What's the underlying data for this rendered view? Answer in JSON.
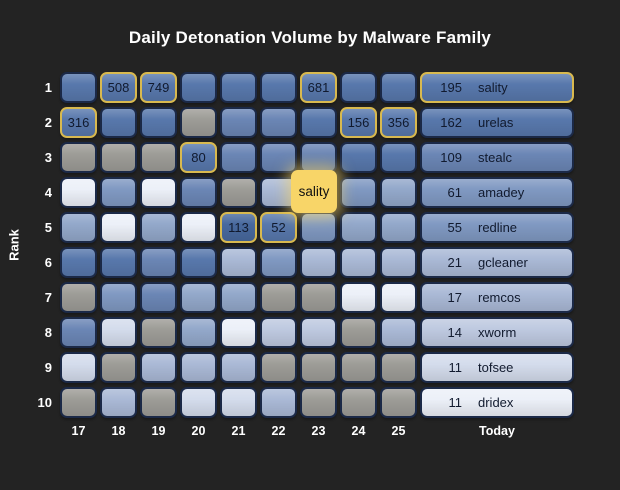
{
  "title": "Daily Detonation Volume by Malware Family",
  "y_axis_label": "Rank",
  "x_ticks": [
    "17",
    "18",
    "19",
    "20",
    "21",
    "22",
    "23",
    "24",
    "25",
    "Today"
  ],
  "tooltip": {
    "text": "sality"
  },
  "colors": {
    "background": "#232323",
    "cell_border": "#1b2947",
    "highlight_outline": "#d8b94f",
    "tooltip_fill": "#f8d568",
    "text_light": "#ffffff",
    "text_dark": "#111a2e",
    "palette": {
      "b1": "#48699e",
      "b2": "#5878ac",
      "b3": "#6b86b5",
      "b4": "#8099c2",
      "b5": "#93a8ca",
      "b6": "#aab9d6",
      "b7": "#bec9e0",
      "b8": "#d4dcec",
      "b9": "#ecf0f8",
      "gray": "#9d9c97"
    }
  },
  "rows": [
    {
      "rank": "1",
      "cells": [
        {
          "c": "b2"
        },
        {
          "c": "b2",
          "label": "508",
          "hl": true
        },
        {
          "c": "b2",
          "label": "749",
          "hl": true
        },
        {
          "c": "b2"
        },
        {
          "c": "b2"
        },
        {
          "c": "b2"
        },
        {
          "c": "b2",
          "label": "681",
          "hl": true
        },
        {
          "c": "b2"
        },
        {
          "c": "b2"
        }
      ],
      "today": {
        "value": "195",
        "family": "sality",
        "c": "b2",
        "hl": true
      }
    },
    {
      "rank": "2",
      "cells": [
        {
          "c": "b2",
          "label": "316",
          "hl": true
        },
        {
          "c": "b2"
        },
        {
          "c": "b2"
        },
        {
          "c": "gray"
        },
        {
          "c": "b3"
        },
        {
          "c": "b3"
        },
        {
          "c": "b2"
        },
        {
          "c": "b2",
          "label": "156",
          "hl": true
        },
        {
          "c": "b2",
          "label": "356",
          "hl": true
        }
      ],
      "today": {
        "value": "162",
        "family": "urelas",
        "c": "b2"
      }
    },
    {
      "rank": "3",
      "cells": [
        {
          "c": "gray"
        },
        {
          "c": "gray"
        },
        {
          "c": "gray"
        },
        {
          "c": "b2",
          "label": "80",
          "hl": true
        },
        {
          "c": "b3"
        },
        {
          "c": "b3"
        },
        {
          "c": "b3"
        },
        {
          "c": "b2"
        },
        {
          "c": "b2"
        }
      ],
      "today": {
        "value": "109",
        "family": "stealc",
        "c": "b3"
      }
    },
    {
      "rank": "4",
      "cells": [
        {
          "c": "b9"
        },
        {
          "c": "b4"
        },
        {
          "c": "b9"
        },
        {
          "c": "b3"
        },
        {
          "c": "gray"
        },
        {
          "c": "b6"
        },
        {
          "c": "b4"
        },
        {
          "c": "b4"
        },
        {
          "c": "b5"
        }
      ],
      "today": {
        "value": "61",
        "family": "amadey",
        "c": "b4"
      }
    },
    {
      "rank": "5",
      "cells": [
        {
          "c": "b5"
        },
        {
          "c": "b9"
        },
        {
          "c": "b5"
        },
        {
          "c": "b9"
        },
        {
          "c": "b1",
          "label": "113",
          "hl": true
        },
        {
          "c": "b2",
          "label": "52",
          "hl": true
        },
        {
          "c": "b4"
        },
        {
          "c": "b5"
        },
        {
          "c": "b5"
        }
      ],
      "today": {
        "value": "55",
        "family": "redline",
        "c": "b4"
      }
    },
    {
      "rank": "6",
      "cells": [
        {
          "c": "b2"
        },
        {
          "c": "b2"
        },
        {
          "c": "b3"
        },
        {
          "c": "b2"
        },
        {
          "c": "b6"
        },
        {
          "c": "b4"
        },
        {
          "c": "b6"
        },
        {
          "c": "b6"
        },
        {
          "c": "b6"
        }
      ],
      "today": {
        "value": "21",
        "family": "gcleaner",
        "c": "b6"
      }
    },
    {
      "rank": "7",
      "cells": [
        {
          "c": "gray"
        },
        {
          "c": "b4"
        },
        {
          "c": "b3"
        },
        {
          "c": "b5"
        },
        {
          "c": "b5"
        },
        {
          "c": "gray"
        },
        {
          "c": "gray"
        },
        {
          "c": "b9"
        },
        {
          "c": "b9"
        }
      ],
      "today": {
        "value": "17",
        "family": "remcos",
        "c": "b6"
      }
    },
    {
      "rank": "8",
      "cells": [
        {
          "c": "b3"
        },
        {
          "c": "b8"
        },
        {
          "c": "gray"
        },
        {
          "c": "b5"
        },
        {
          "c": "b9"
        },
        {
          "c": "b7"
        },
        {
          "c": "b7"
        },
        {
          "c": "gray"
        },
        {
          "c": "b6"
        }
      ],
      "today": {
        "value": "14",
        "family": "xworm",
        "c": "b7"
      }
    },
    {
      "rank": "9",
      "cells": [
        {
          "c": "b8"
        },
        {
          "c": "gray"
        },
        {
          "c": "b6"
        },
        {
          "c": "b6"
        },
        {
          "c": "b6"
        },
        {
          "c": "gray"
        },
        {
          "c": "gray"
        },
        {
          "c": "gray"
        },
        {
          "c": "gray"
        }
      ],
      "today": {
        "value": "11",
        "family": "tofsee",
        "c": "b8"
      }
    },
    {
      "rank": "10",
      "cells": [
        {
          "c": "gray"
        },
        {
          "c": "b6"
        },
        {
          "c": "gray"
        },
        {
          "c": "b8"
        },
        {
          "c": "b8"
        },
        {
          "c": "b6"
        },
        {
          "c": "gray"
        },
        {
          "c": "gray"
        },
        {
          "c": "gray"
        }
      ],
      "today": {
        "value": "11",
        "family": "dridex",
        "c": "b9"
      }
    }
  ],
  "chart_data": {
    "type": "heatmap",
    "title": "Daily Detonation Volume by Malware Family",
    "x": [
      "17",
      "18",
      "19",
      "20",
      "21",
      "22",
      "23",
      "24",
      "25",
      "Today"
    ],
    "y": [
      1,
      2,
      3,
      4,
      5,
      6,
      7,
      8,
      9,
      10
    ],
    "ylabel": "Rank",
    "legend_position": "none",
    "cell_annotations": [
      {
        "rank": 1,
        "day": "18",
        "value": 508
      },
      {
        "rank": 1,
        "day": "19",
        "value": 749
      },
      {
        "rank": 1,
        "day": "23",
        "value": 681
      },
      {
        "rank": 2,
        "day": "17",
        "value": 316
      },
      {
        "rank": 2,
        "day": "24",
        "value": 156
      },
      {
        "rank": 2,
        "day": "25",
        "value": 356
      },
      {
        "rank": 3,
        "day": "20",
        "value": 80
      },
      {
        "rank": 5,
        "day": "21",
        "value": 113
      },
      {
        "rank": 5,
        "day": "22",
        "value": 52
      }
    ],
    "today_column": [
      {
        "rank": 1,
        "value": 195,
        "family": "sality"
      },
      {
        "rank": 2,
        "value": 162,
        "family": "urelas"
      },
      {
        "rank": 3,
        "value": 109,
        "family": "stealc"
      },
      {
        "rank": 4,
        "value": 61,
        "family": "amadey"
      },
      {
        "rank": 5,
        "value": 55,
        "family": "redline"
      },
      {
        "rank": 6,
        "value": 21,
        "family": "gcleaner"
      },
      {
        "rank": 7,
        "value": 17,
        "family": "remcos"
      },
      {
        "rank": 8,
        "value": 14,
        "family": "xworm"
      },
      {
        "rank": 9,
        "value": 11,
        "family": "tofsee"
      },
      {
        "rank": 10,
        "value": 11,
        "family": "dridex"
      }
    ],
    "hover_tooltip": "sality"
  }
}
